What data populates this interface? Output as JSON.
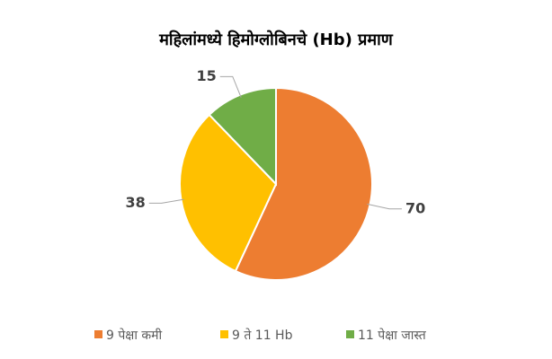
{
  "chart_data": {
    "type": "pie",
    "title": "महिलांमध्ये हिमोग्लोबिनचे (Hb) प्रमाण",
    "categories": [
      "9 पेक्षा कमी",
      "9 ते 11 Hb",
      "11 पेक्षा जास्त"
    ],
    "values": [
      70,
      38,
      15
    ],
    "colors": [
      "#ED7D31",
      "#FFC000",
      "#70AD47"
    ],
    "legend": "bottom"
  }
}
